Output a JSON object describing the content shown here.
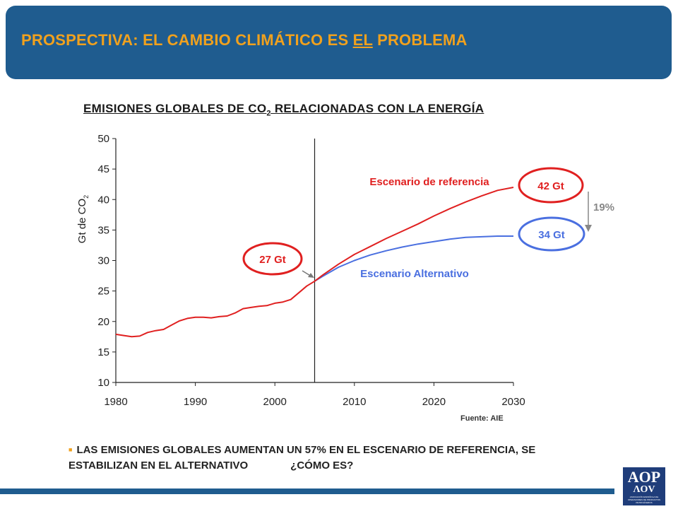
{
  "header": {
    "title_before": "PROSPECTIVA: EL CAMBIO CLIMÁTICO ES ",
    "title_underlined": "EL",
    "title_after": " PROBLEMA"
  },
  "chart_title": {
    "before": "EMISIONES GLOBALES DE CO",
    "sub": "2",
    "after": " RELACIONADAS CON LA ENERGÍA"
  },
  "source": "Fuente: AIE",
  "note": {
    "text": "LAS EMISIONES GLOBALES AUMENTAN UN 57% EN EL ESCENARIO DE REFERENCIA, SE ESTABILIZAN EN EL ALTERNATIVO",
    "question": "¿CÓMO ES?"
  },
  "logo": {
    "top": "AOP",
    "bottom": "ΛOV",
    "small": "ASOCIACIÓN ESPAÑOLA DE OPERADORES DE PRODUCTOS PETROLÍFEROS"
  },
  "colors": {
    "brand_blue": "#1f5c8f",
    "accent_orange": "#f0a11e",
    "reference_red": "#e02020",
    "alternative_blue": "#4a6fe0"
  },
  "chart_data": {
    "type": "line",
    "ylabel": "Gt de CO2",
    "ylabel_main": "Gt de CO",
    "ylabel_sub": "2",
    "xlim": [
      1980,
      2030
    ],
    "ylim": [
      10,
      50
    ],
    "xticks": [
      1980,
      1990,
      2000,
      2010,
      2020,
      2030
    ],
    "yticks": [
      10,
      15,
      20,
      25,
      30,
      35,
      40,
      45,
      50
    ],
    "divider_x": 2005,
    "grid": false,
    "series": [
      {
        "name": "Escenario de referencia",
        "color": "#e02020",
        "x": [
          1980,
          1981,
          1982,
          1983,
          1984,
          1985,
          1986,
          1987,
          1988,
          1989,
          1990,
          1991,
          1992,
          1993,
          1994,
          1995,
          1996,
          1997,
          1998,
          1999,
          2000,
          2001,
          2002,
          2003,
          2004,
          2005,
          2006,
          2008,
          2010,
          2012,
          2014,
          2016,
          2018,
          2020,
          2022,
          2024,
          2026,
          2028,
          2030
        ],
        "y": [
          17.9,
          17.7,
          17.5,
          17.6,
          18.2,
          18.5,
          18.7,
          19.4,
          20.1,
          20.5,
          20.7,
          20.7,
          20.6,
          20.8,
          20.9,
          21.4,
          22.1,
          22.3,
          22.5,
          22.6,
          23.0,
          23.2,
          23.6,
          24.7,
          25.8,
          26.6,
          27.6,
          29.4,
          31.0,
          32.3,
          33.6,
          34.8,
          36.0,
          37.3,
          38.5,
          39.6,
          40.6,
          41.5,
          42.0
        ]
      },
      {
        "name": "Escenario Alternativo",
        "color": "#4a6fe0",
        "x": [
          2005,
          2006,
          2008,
          2010,
          2012,
          2014,
          2016,
          2018,
          2020,
          2022,
          2024,
          2026,
          2028,
          2030
        ],
        "y": [
          26.6,
          27.4,
          28.9,
          30.0,
          30.9,
          31.6,
          32.2,
          32.7,
          33.1,
          33.5,
          33.8,
          33.9,
          34.0,
          34.0
        ]
      }
    ],
    "annotations": {
      "start_label": "27 Gt",
      "reference_end_label": "42 Gt",
      "alternative_end_label": "34 Gt",
      "difference_label": "19%",
      "reference_name": "Escenario de referencia",
      "alternative_name": "Escenario Alternativo"
    }
  }
}
